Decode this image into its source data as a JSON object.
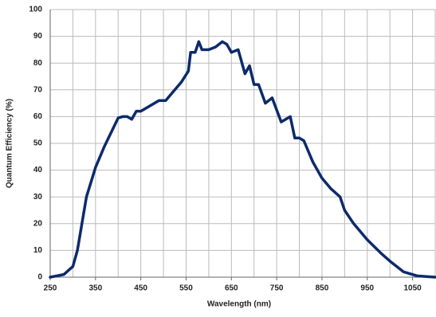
{
  "chart_data": {
    "type": "line",
    "x_label": "Wavelength (nm)",
    "y_label": "Quantum Efficiency (%)",
    "x": [
      250,
      280,
      300,
      310,
      320,
      330,
      350,
      370,
      390,
      400,
      410,
      420,
      430,
      440,
      450,
      470,
      490,
      505,
      520,
      540,
      555,
      560,
      570,
      578,
      585,
      600,
      615,
      630,
      640,
      650,
      665,
      680,
      690,
      700,
      710,
      725,
      740,
      760,
      780,
      790,
      800,
      810,
      830,
      850,
      870,
      890,
      900,
      920,
      950,
      980,
      1000,
      1030,
      1060,
      1100
    ],
    "series": [
      {
        "color": "#0d2a6b",
        "values": [
          0,
          1,
          4,
          10,
          20,
          30,
          41,
          49,
          56,
          59.5,
          60,
          60,
          59,
          62,
          62,
          64,
          66,
          66,
          69,
          73,
          77,
          84,
          84,
          88,
          85,
          85,
          86,
          88,
          87,
          84,
          85,
          76,
          79,
          72,
          72,
          65,
          67,
          58,
          60,
          52,
          52,
          51,
          43,
          37,
          33,
          30,
          25,
          20,
          14,
          9,
          6,
          2,
          0.5,
          0
        ]
      }
    ],
    "xlim": [
      250,
      1100
    ],
    "ylim": [
      0,
      100
    ],
    "xticks": [
      250,
      350,
      450,
      550,
      650,
      750,
      850,
      950,
      1050
    ],
    "xgrid": [
      300,
      350,
      400,
      450,
      500,
      550,
      600,
      650,
      700,
      750,
      800,
      850,
      900,
      950,
      1000,
      1050,
      1100
    ],
    "yticks": [
      0,
      10,
      20,
      30,
      40,
      50,
      60,
      70,
      80,
      90,
      100
    ],
    "grid": true
  }
}
